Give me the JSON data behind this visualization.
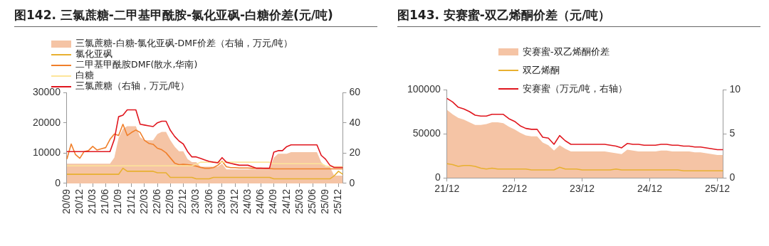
{
  "chart_data": [
    {
      "type": "line",
      "title": "图142. 三氯蔗糖-二甲基甲酰胺-氯化亚砜-白糖价差(元/吨)",
      "legend": "top left",
      "categories": [
        "20/09",
        null,
        null,
        "20/12",
        null,
        null,
        "21/03",
        null,
        null,
        "21/06",
        null,
        null,
        "21/09",
        null,
        null,
        "21/12",
        null,
        null,
        "22/03",
        null,
        null,
        "22/06",
        null,
        null,
        "22/09",
        null,
        null,
        "22/12",
        null,
        null,
        "23/03",
        null,
        null,
        "23/06",
        null,
        null,
        "23/09",
        null,
        null,
        "23/12",
        null,
        null,
        "24/03",
        null,
        null,
        "24/06",
        null,
        null,
        "24/09",
        null,
        null,
        "24/12",
        null,
        null,
        "25/03",
        null,
        null,
        "25/06",
        null,
        null,
        "25/09",
        null,
        null,
        "25/12",
        null
      ],
      "ylim": [
        0,
        30000
      ],
      "yticks": [
        0,
        10000,
        20000,
        30000
      ],
      "y2lim": [
        0,
        60
      ],
      "y2ticks": [
        0,
        20,
        40,
        60
      ],
      "series": [
        {
          "name": "三氯蔗糖-白糖-氯化亚砜-DMF价差（右轴，万元/吨）",
          "type": "area",
          "axis": "y2",
          "color": "#f5c4a5",
          "values": [
            13,
            13,
            13,
            13,
            13,
            13,
            13,
            13,
            13,
            13,
            13,
            17,
            30,
            36,
            37.7,
            37.7,
            37.7,
            30.5,
            28.5,
            28.5,
            28.5,
            32.6,
            34,
            34,
            28.5,
            24.3,
            21.2,
            21.2,
            16,
            14,
            14,
            11,
            11,
            11,
            11,
            11,
            13,
            9.3,
            9.3,
            9.3,
            9.3,
            9.3,
            9.3,
            9.3,
            9.3,
            9.3,
            9.3,
            9.3,
            17,
            19.6,
            19.6,
            19.6,
            20.6,
            20.6,
            20.6,
            20.6,
            20.6,
            20.6,
            20.6,
            14,
            11,
            11,
            5.2,
            5.2,
            5.2
          ]
        },
        {
          "name": "氯化亚砜",
          "color": "#e8b030",
          "values": [
            3000,
            3000,
            3000,
            3000,
            3000,
            3000,
            3000,
            3000,
            3000,
            3000,
            3000,
            3000,
            3000,
            5000,
            4000,
            4000,
            4000,
            4000,
            4000,
            4000,
            4000,
            3500,
            3500,
            3500,
            2000,
            2000,
            2000,
            2000,
            2000,
            2000,
            1500,
            1500,
            1500,
            1500,
            2000,
            2000,
            2000,
            2000,
            2000,
            2000,
            2000,
            2000,
            2000,
            2000,
            2000,
            2000,
            2000,
            2000,
            1500,
            1500,
            1500,
            1500,
            1500,
            1500,
            1500,
            1500,
            1500,
            1500,
            1500,
            1500,
            1500,
            1500,
            2500,
            4000,
            3000
          ]
        },
        {
          "name": "二甲基甲酰胺DMF(散水,华南)",
          "color": "#f07f2a",
          "values": [
            8000,
            13000,
            9500,
            8300,
            10500,
            10800,
            12200,
            11000,
            11400,
            11800,
            14500,
            16300,
            15800,
            19500,
            15800,
            16800,
            17600,
            16800,
            14200,
            13200,
            12900,
            11600,
            11100,
            10100,
            8400,
            6700,
            6200,
            6300,
            6200,
            6000,
            5700,
            5300,
            5000,
            5000,
            5200,
            6000,
            7300,
            5500,
            5200,
            5200,
            5100,
            5100,
            5100,
            5000,
            5000,
            5000,
            4900,
            4900,
            4800,
            4800,
            4800,
            4800,
            4800,
            4800,
            4800,
            4800,
            4800,
            4800,
            4800,
            4800,
            4800,
            4800,
            4800,
            4800,
            4800
          ]
        },
        {
          "name": "白糖",
          "color": "#fde59a",
          "values": [
            5800,
            5800,
            5800,
            5800,
            5800,
            5800,
            5800,
            5800,
            5800,
            5800,
            5800,
            5800,
            5800,
            5800,
            5800,
            5800,
            5800,
            5800,
            5800,
            5800,
            5800,
            5800,
            5800,
            5800,
            5800,
            5800,
            5800,
            5800,
            5800,
            5800,
            6300,
            7000,
            7000,
            7000,
            7000,
            7000,
            7000,
            7000,
            7000,
            7000,
            7000,
            7000,
            7000,
            7000,
            7000,
            7000,
            7000,
            7000,
            6500,
            6500,
            6500,
            6500,
            6500,
            6500,
            6500,
            6500,
            6500,
            6500,
            6500,
            6500,
            5800,
            5500,
            5500,
            5500,
            5500
          ]
        },
        {
          "name": "三氯蔗糖（右轴，万元/吨）",
          "axis": "y2",
          "color": "#e0161e",
          "values": [
            21,
            21,
            21,
            21,
            21,
            21,
            21,
            21,
            21,
            21,
            21,
            29,
            44,
            45,
            48.5,
            48.5,
            48.5,
            39,
            38.5,
            38,
            37.5,
            40,
            41,
            41,
            35,
            31,
            28,
            26,
            21,
            17.5,
            17.5,
            16.5,
            15.5,
            14.5,
            14,
            13.6,
            17,
            14,
            13.2,
            12.6,
            12,
            12,
            12,
            11,
            10,
            10,
            10,
            10,
            20.6,
            21.6,
            21.6,
            24.3,
            25.4,
            25.4,
            25.4,
            25.4,
            25.4,
            25.4,
            25.4,
            18.5,
            16,
            12,
            10.5,
            10.5,
            10.5
          ]
        }
      ]
    },
    {
      "type": "line",
      "title": "图143. 安赛蜜-双乙烯酮价差（元/吨）",
      "legend": "top",
      "categories": [
        "21/12",
        null,
        null,
        null,
        null,
        null,
        null,
        null,
        null,
        null,
        null,
        null,
        "22/12",
        null,
        null,
        null,
        null,
        null,
        null,
        null,
        null,
        null,
        null,
        null,
        "23/12",
        null,
        null,
        null,
        null,
        null,
        null,
        null,
        null,
        null,
        null,
        null,
        "24/12",
        null,
        null,
        null,
        null,
        null,
        null,
        null,
        null,
        null,
        null,
        null,
        "25/12",
        null
      ],
      "ylim": [
        0,
        100000
      ],
      "yticks": [
        0,
        50000,
        100000
      ],
      "y2lim": [
        0,
        10
      ],
      "y2ticks": [
        0,
        5,
        10
      ],
      "series": [
        {
          "name": "安赛蜜-双乙烯酮价差",
          "type": "area",
          "color": "#f5c4a5",
          "values": [
            77000,
            72000,
            68000,
            66000,
            63000,
            60000,
            60000,
            61000,
            63000,
            63000,
            62000,
            58000,
            55000,
            51000,
            48000,
            47000,
            47000,
            40000,
            37000,
            31000,
            37000,
            33000,
            30000,
            30000,
            30000,
            30000,
            30000,
            30000,
            30000,
            29000,
            28000,
            27000,
            32000,
            31000,
            30000,
            30000,
            30000,
            30000,
            31000,
            31000,
            30000,
            30000,
            30000,
            30000,
            29000,
            29000,
            28000,
            27000,
            26000,
            26000
          ]
        },
        {
          "name": "双乙烯酮",
          "color": "#e8b030",
          "values": [
            16000,
            15000,
            13000,
            14000,
            14000,
            13000,
            11000,
            10000,
            11000,
            10000,
            10000,
            10000,
            10000,
            10000,
            10000,
            9000,
            9000,
            9000,
            9000,
            9000,
            12000,
            10000,
            10000,
            10000,
            9000,
            9000,
            9000,
            9000,
            9000,
            9000,
            10000,
            9000,
            9000,
            9000,
            9000,
            9000,
            9000,
            9000,
            9000,
            9000,
            9000,
            9000,
            8000,
            8000,
            8000,
            8000,
            8000,
            8000,
            8000,
            8000
          ]
        },
        {
          "name": "安赛蜜（万元/吨，右轴）",
          "axis": "y2",
          "color": "#e0161e",
          "values": [
            9.0,
            8.6,
            8.0,
            7.8,
            7.5,
            7.1,
            7.0,
            7.0,
            7.2,
            7.2,
            7.2,
            6.7,
            6.4,
            5.9,
            5.6,
            5.5,
            5.5,
            4.6,
            4.5,
            3.8,
            4.8,
            4.2,
            3.8,
            3.8,
            3.8,
            3.8,
            3.8,
            3.8,
            3.8,
            3.7,
            3.6,
            3.4,
            3.9,
            3.8,
            3.8,
            3.7,
            3.7,
            3.7,
            3.8,
            3.8,
            3.7,
            3.7,
            3.6,
            3.6,
            3.5,
            3.5,
            3.4,
            3.3,
            3.2,
            3.2
          ]
        }
      ]
    }
  ]
}
